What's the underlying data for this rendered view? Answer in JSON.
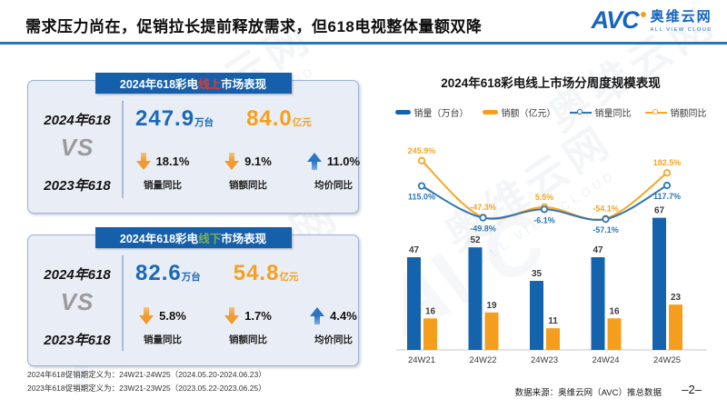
{
  "header": {
    "title": "需求压力尚在，促销拉长提前释放需求，但618电视整体量额双降",
    "logo": {
      "avc": "AVC",
      "cn": "奥维云网",
      "en": "ALL VIEW CLOUD"
    }
  },
  "watermark": {
    "cn": "奥维云网",
    "en": "ALL VIEW CLOUD",
    "avc": "AVC"
  },
  "panels": [
    {
      "title_prefix": "2024年618彩电",
      "title_channel": "线上",
      "title_suffix": "市场表现",
      "year_top": "2024年618",
      "vs": "VS",
      "year_bottom": "2023年618",
      "volume": "247.9",
      "volume_unit": "万台",
      "revenue": "84.0",
      "revenue_unit": "亿元",
      "metrics": [
        {
          "direction": "down",
          "value": "18.1%",
          "label": "销量同比"
        },
        {
          "direction": "down",
          "value": "9.1%",
          "label": "销额同比"
        },
        {
          "direction": "up",
          "value": "11.0%",
          "label": "均价同比"
        }
      ]
    },
    {
      "title_prefix": "2024年618彩电",
      "title_channel": "线下",
      "title_suffix": "市场表现",
      "year_top": "2024年618",
      "vs": "VS",
      "year_bottom": "2023年618",
      "volume": "82.6",
      "volume_unit": "万台",
      "revenue": "54.8",
      "revenue_unit": "亿元",
      "metrics": [
        {
          "direction": "down",
          "value": "5.8%",
          "label": "销量同比"
        },
        {
          "direction": "down",
          "value": "1.7%",
          "label": "销额同比"
        },
        {
          "direction": "up",
          "value": "4.4%",
          "label": "均价同比"
        }
      ]
    }
  ],
  "chart_data": {
    "type": "combo",
    "title": "2024年618彩电线上市场分周度规模表现",
    "categories": [
      "24W21",
      "24W22",
      "24W23",
      "24W24",
      "24W25"
    ],
    "series": [
      {
        "name": "销量（万台）",
        "type": "bar",
        "color": "#1563ad",
        "values": [
          47,
          52,
          35,
          47,
          67
        ]
      },
      {
        "name": "销额（亿元）",
        "type": "bar",
        "color": "#f59e1d",
        "values": [
          16,
          19,
          11,
          16,
          23
        ]
      },
      {
        "name": "销量同比",
        "type": "line",
        "color": "#2e75b6",
        "unit": "%",
        "values": [
          115.0,
          -49.8,
          -6.1,
          -57.1,
          117.7
        ]
      },
      {
        "name": "销额同比",
        "type": "line",
        "color": "#f5a623",
        "unit": "%",
        "values": [
          245.9,
          -47.3,
          5.5,
          -54.1,
          182.5
        ]
      }
    ],
    "legend_position": "top",
    "grid": false,
    "baseline_color": "#c8c8c8"
  },
  "colors": {
    "accent_blue": "#2e74b5",
    "tab_blue": "#1660ab",
    "online_red": "#e8392b",
    "offline_green": "#7cb153",
    "value_blue": "#1b69b6",
    "value_orange": "#f5a01e",
    "panel_bg": "#e9edf5"
  },
  "footnotes": [
    "2024年618促销期定义为：24W21-24W25（2024.05.20-2024.06.23）",
    "2023年618促销期定义为：23W21-23W25（2023.05.22-2023.06.25）"
  ],
  "source": "数据来源：奥维云网（AVC）推总数据",
  "page": "–2–"
}
